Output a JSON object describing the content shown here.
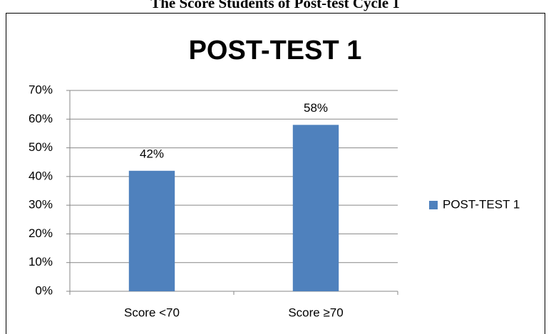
{
  "heading": "The Score Students of Post-test Cycle 1",
  "chart_data": {
    "type": "bar",
    "title": "POST-TEST 1",
    "categories": [
      "Score <70",
      "Score ≥70"
    ],
    "series": [
      {
        "name": "POST-TEST 1",
        "color": "#4f81bd",
        "values": [
          42,
          58
        ],
        "value_labels": [
          "42%",
          "58%"
        ]
      }
    ],
    "ylim": [
      0,
      70
    ],
    "yticks": [
      {
        "value": 0,
        "label": "0%"
      },
      {
        "value": 10,
        "label": "10%"
      },
      {
        "value": 20,
        "label": "20%"
      },
      {
        "value": 30,
        "label": "30%"
      },
      {
        "value": 40,
        "label": "40%"
      },
      {
        "value": 50,
        "label": "50%"
      },
      {
        "value": 60,
        "label": "60%"
      },
      {
        "value": 70,
        "label": "70%"
      }
    ],
    "grid": true,
    "legend": "right"
  }
}
